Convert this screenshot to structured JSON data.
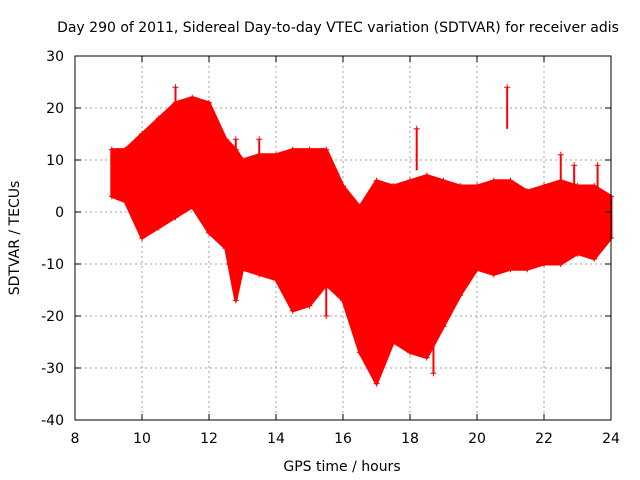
{
  "chart_data": {
    "type": "scatter",
    "title": "Day 290 of 2011, Sidereal Day-to-day VTEC variation (SDTVAR) for receiver adis",
    "xlabel": "GPS time / hours",
    "ylabel": "SDTVAR / TECUs",
    "xlim": [
      8,
      24
    ],
    "ylim": [
      -40,
      30
    ],
    "grid": true,
    "marker": "+",
    "xticks": [
      "8",
      "10",
      "12",
      "14",
      "16",
      "18",
      "20",
      "22",
      "24"
    ],
    "yticks": [
      "30",
      "20",
      "10",
      "0",
      "-10",
      "-20",
      "-30",
      "-40"
    ],
    "series": [
      {
        "name": "SDTVAR",
        "color": "#ff0000",
        "upper_envelope": {
          "x": [
            9.1,
            9.5,
            10.0,
            10.5,
            11.0,
            11.5,
            12.0,
            12.5,
            12.8,
            13.0,
            13.5,
            14.0,
            14.5,
            15.0,
            15.5,
            16.0,
            16.5,
            17.0,
            17.5,
            18.0,
            18.5,
            19.0,
            19.5,
            20.0,
            20.5,
            21.0,
            21.5,
            22.0,
            22.5,
            23.0,
            23.5,
            24.0
          ],
          "y": [
            12,
            12,
            15,
            18,
            21,
            22,
            21,
            14,
            12,
            10,
            11,
            11,
            12,
            12,
            12,
            5,
            1,
            6,
            5,
            6,
            7,
            6,
            5,
            5,
            6,
            6,
            4,
            5,
            6,
            5,
            5,
            3
          ]
        },
        "lower_envelope": {
          "x": [
            9.1,
            9.5,
            10.0,
            10.5,
            11.0,
            11.5,
            12.0,
            12.5,
            12.8,
            13.0,
            13.5,
            14.0,
            14.5,
            15.0,
            15.5,
            16.0,
            16.5,
            17.0,
            17.5,
            18.0,
            18.5,
            19.0,
            19.5,
            20.0,
            20.5,
            21.0,
            21.5,
            22.0,
            22.5,
            23.0,
            23.5,
            24.0
          ],
          "y": [
            3,
            2,
            -5,
            -3,
            -1,
            1,
            -4,
            -7,
            -17,
            -11,
            -12,
            -13,
            -19,
            -18,
            -14,
            -17,
            -27,
            -33,
            -25,
            -27,
            -28,
            -22,
            -16,
            -11,
            -12,
            -11,
            -11,
            -10,
            -10,
            -8,
            -9,
            -5
          ]
        },
        "outliers": [
          {
            "x": 11.0,
            "y": 24
          },
          {
            "x": 12.6,
            "y": -10
          },
          {
            "x": 12.8,
            "y": 14
          },
          {
            "x": 13.5,
            "y": 14
          },
          {
            "x": 15.5,
            "y": -20
          },
          {
            "x": 18.2,
            "y": 16
          },
          {
            "x": 18.7,
            "y": -31
          },
          {
            "x": 20.9,
            "y": 24
          },
          {
            "x": 22.5,
            "y": 11
          },
          {
            "x": 22.9,
            "y": 9
          },
          {
            "x": 23.6,
            "y": 9
          }
        ]
      }
    ]
  }
}
